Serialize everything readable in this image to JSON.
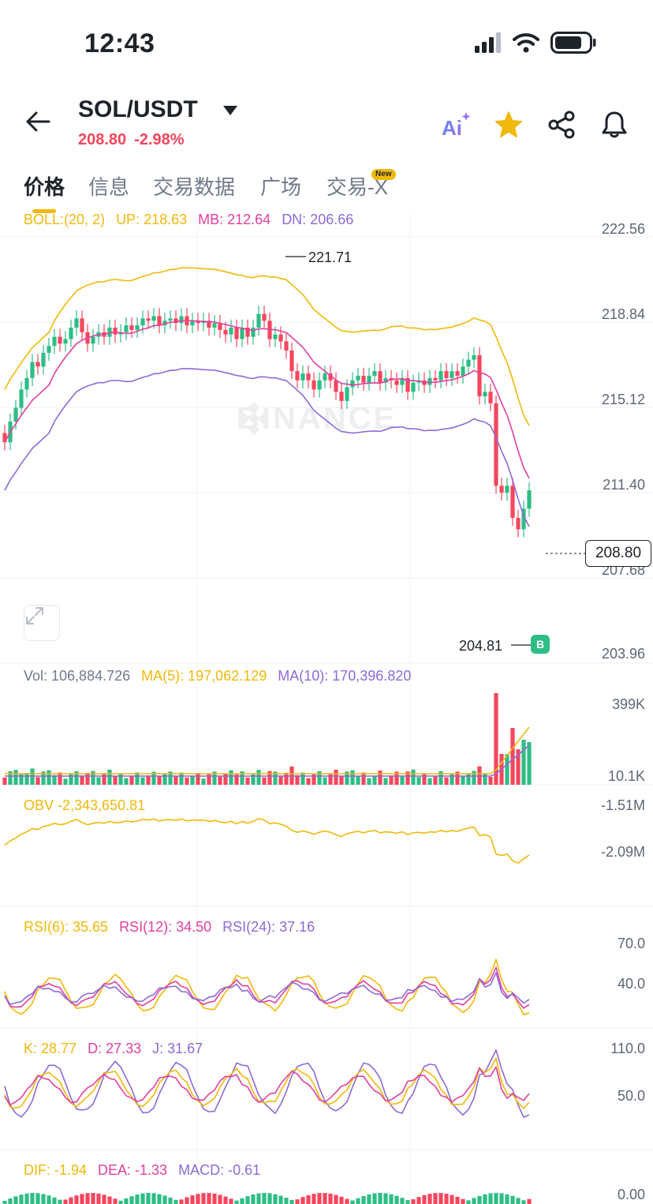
{
  "status_bar": {
    "time": "12:43"
  },
  "header": {
    "pair": "SOL/USDT",
    "price": "208.80",
    "change": "-2.98%",
    "ai_label": "Ai"
  },
  "tabs": [
    {
      "label": "价格"
    },
    {
      "label": "信息"
    },
    {
      "label": "交易数据"
    },
    {
      "label": "广场"
    },
    {
      "label": "交易-X"
    }
  ],
  "new_badge": "New",
  "colors": {
    "up": "#2ebd85",
    "down": "#f6465d",
    "accent": "#f0b90b",
    "pink": "#e040a0",
    "purple": "#8d6ad6"
  },
  "boll_legend": {
    "boll": "BOLL:(20, 2)",
    "up": "UP: 218.63",
    "mb": "MB: 212.64",
    "dn": "DN: 206.66"
  },
  "price_axis": [
    "222.56",
    "218.84",
    "215.12",
    "211.40",
    "207.68",
    "203.96"
  ],
  "current_price_tag": "208.80",
  "high_annotation": "221.71",
  "low_annotation": "204.81",
  "buy_marker": "B",
  "watermark": "BINANCE",
  "vol_legend": {
    "vol": "Vol: 106,884.726",
    "ma5": "MA(5): 197,062.129",
    "ma10": "MA(10): 170,396.820"
  },
  "vol_axis": [
    "399K",
    "10.1K"
  ],
  "obv_legend": {
    "obv": "OBV -2,343,650.81"
  },
  "obv_axis": [
    "-1.51M",
    "-2.09M"
  ],
  "rsi_legend": {
    "rsi6": "RSI(6): 35.65",
    "rsi12": "RSI(12): 34.50",
    "rsi24": "RSI(24): 37.16"
  },
  "rsi_axis": [
    "70.0",
    "40.0"
  ],
  "kdj_legend": {
    "k": "K: 28.77",
    "d": "D: 27.33",
    "j": "J: 31.67"
  },
  "kdj_axis": [
    "110.0",
    "50.0"
  ],
  "macd_legend": {
    "dif": "DIF: -1.94",
    "dea": "DEA: -1.33",
    "macd": "MACD: -0.61"
  },
  "macd_axis": [
    "0.00"
  ]
}
